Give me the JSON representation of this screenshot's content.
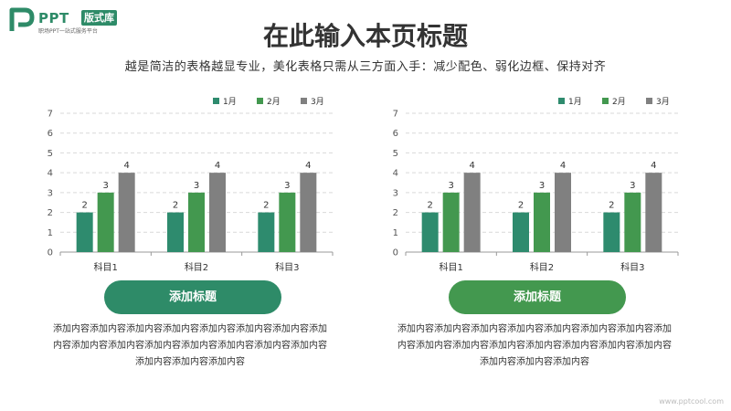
{
  "brand": {
    "name": "PPT",
    "tag": "版式库",
    "slogan": "职场PPT一站式服务平台",
    "color": "#2e8b68"
  },
  "slide": {
    "title": "在此输入本页标题",
    "subtitle": "越是简洁的表格越显专业，美化表格只需从三方面入手：减少配色、弱化边框、保持对齐"
  },
  "panels": [
    {
      "button_label": "添加标题",
      "button_color": "#2e8b68",
      "text": "添加内容添加内容添加内容添加内容添加内容添加内容添加内容添加内容添加内容添加内容添加内容添加内容添加内容添加内容添加内容添加内容添加内容添加内容"
    },
    {
      "button_label": "添加标题",
      "button_color": "#43984f",
      "text": "添加内容添加内容添加内容添加内容添加内容添加内容添加内容添加内容添加内容添加内容添加内容添加内容添加内容添加内容添加内容添加内容添加内容添加内容"
    }
  ],
  "chart_data": [
    {
      "type": "bar",
      "categories": [
        "科目1",
        "科目2",
        "科目3"
      ],
      "series": [
        {
          "name": "1月",
          "values": [
            2,
            2,
            2
          ],
          "color": "#2e8b6e"
        },
        {
          "name": "2月",
          "values": [
            3,
            3,
            3
          ],
          "color": "#43984f"
        },
        {
          "name": "3月",
          "values": [
            4,
            4,
            4
          ],
          "color": "#808080"
        }
      ],
      "ylim": [
        0,
        7
      ],
      "yticks": [
        0,
        1,
        2,
        3,
        4,
        5,
        6,
        7
      ],
      "grid": true,
      "legend": "top-right",
      "data_labels": true
    },
    {
      "type": "bar",
      "categories": [
        "科目1",
        "科目2",
        "科目3"
      ],
      "series": [
        {
          "name": "1月",
          "values": [
            2,
            2,
            2
          ],
          "color": "#2e8b6e"
        },
        {
          "name": "2月",
          "values": [
            3,
            3,
            3
          ],
          "color": "#43984f"
        },
        {
          "name": "3月",
          "values": [
            4,
            4,
            4
          ],
          "color": "#808080"
        }
      ],
      "ylim": [
        0,
        7
      ],
      "yticks": [
        0,
        1,
        2,
        3,
        4,
        5,
        6,
        7
      ],
      "grid": true,
      "legend": "top-right",
      "data_labels": true
    }
  ],
  "footer": {
    "watermark": "www.pptcool.com"
  }
}
